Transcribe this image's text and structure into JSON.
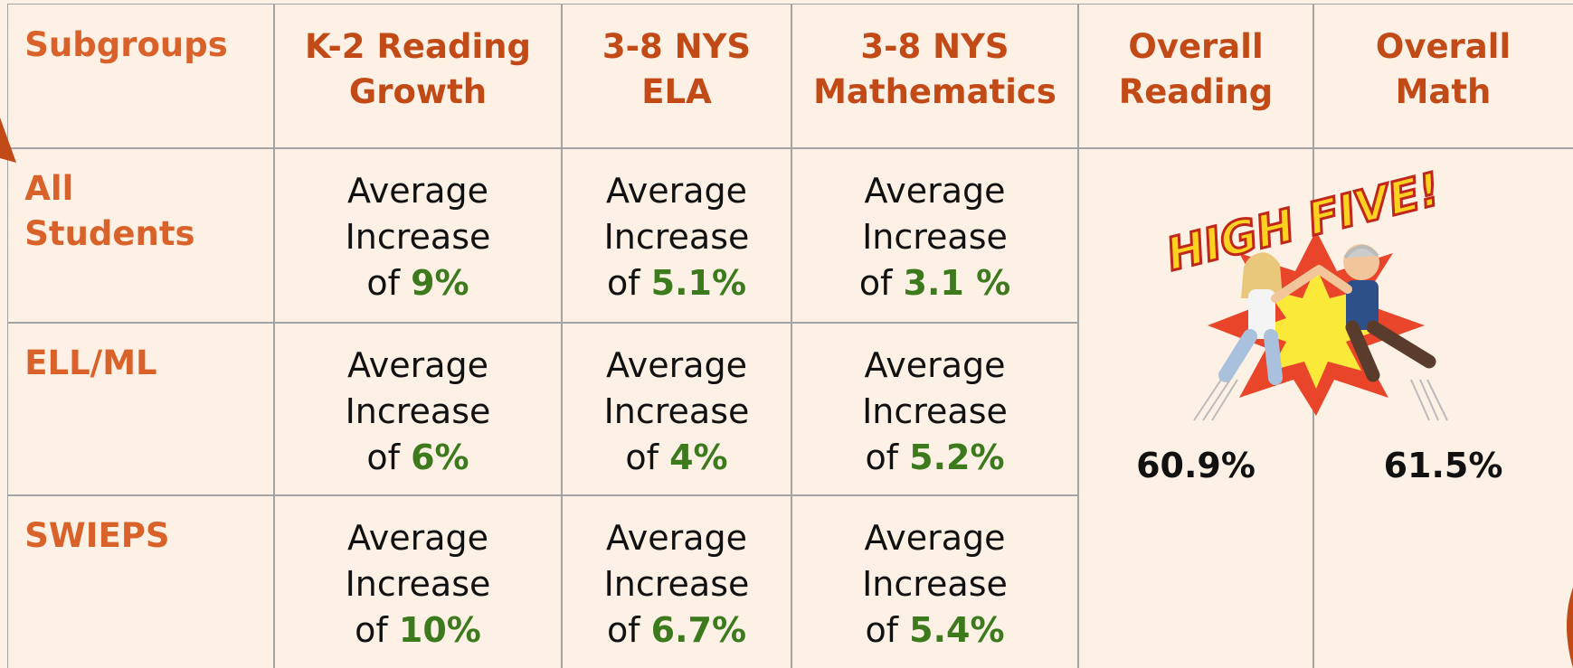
{
  "table": {
    "header": [
      [
        "Subgroups"
      ],
      [
        "K-2 Reading",
        "Growth"
      ],
      [
        "3-8 NYS",
        "ELA"
      ],
      [
        "3-8 NYS",
        "Mathematics"
      ],
      [
        "Overall",
        "Reading"
      ],
      [
        "Overall",
        "Math"
      ]
    ],
    "rows": [
      {
        "subgroup": [
          "All",
          "Students"
        ],
        "cells": [
          {
            "text": [
              "Average",
              "Increase",
              "of"
            ],
            "value": "9%"
          },
          {
            "text": [
              "Average",
              "Increase",
              "of"
            ],
            "value": "5.1%"
          },
          {
            "text": [
              "Average",
              "Increase",
              "of"
            ],
            "value": "3.1 %"
          }
        ]
      },
      {
        "subgroup": [
          "ELL/ML"
        ],
        "cells": [
          {
            "text": [
              "Average",
              "Increase",
              "of"
            ],
            "value": "6%"
          },
          {
            "text": [
              "Average",
              "Increase",
              "of"
            ],
            "value": "4%"
          },
          {
            "text": [
              "Average",
              "Increase",
              "of"
            ],
            "value": "5.2%"
          }
        ]
      },
      {
        "subgroup": [
          "SWIEPS"
        ],
        "cells": [
          {
            "text": [
              "Average",
              "Increase",
              "of"
            ],
            "value": "10%"
          },
          {
            "text": [
              "Average",
              "Increase",
              "of"
            ],
            "value": "6.7%"
          },
          {
            "text": [
              "Average",
              "Increase",
              "of"
            ],
            "value": "5.4%"
          }
        ]
      }
    ],
    "overall": [
      "60.9%",
      "61.5%"
    ],
    "image_caption": "HIGH FIVE!"
  }
}
